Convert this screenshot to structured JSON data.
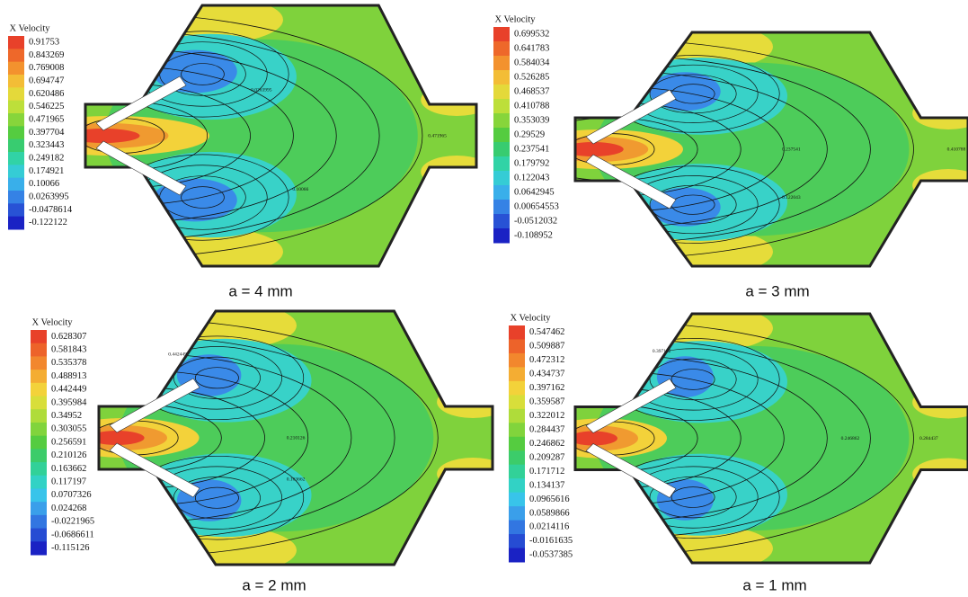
{
  "panels": [
    {
      "legend_title": "X Velocity",
      "levels": [
        "0.91753",
        "0.843269",
        "0.769008",
        "0.694747",
        "0.620486",
        "0.546225",
        "0.471965",
        "0.397704",
        "0.323443",
        "0.249182",
        "0.174921",
        "0.10066",
        "0.0263995",
        "-0.0478614",
        "-0.122122"
      ],
      "caption": "a = 4 mm",
      "contour_labels": [
        "0.0263995",
        "0.471965",
        "0.10066"
      ]
    },
    {
      "legend_title": "X Velocity",
      "levels": [
        "0.699532",
        "0.641783",
        "0.584034",
        "0.526285",
        "0.468537",
        "0.410788",
        "0.353039",
        "0.29529",
        "0.237541",
        "0.179792",
        "0.122043",
        "0.0642945",
        "0.00654553",
        "-0.0512032",
        "-0.108952"
      ],
      "caption": "a = 3 mm",
      "contour_labels": [
        "0.237541",
        "0.410788",
        "0.122043"
      ]
    },
    {
      "legend_title": "X Velocity",
      "levels": [
        "0.628307",
        "0.581843",
        "0.535378",
        "0.488913",
        "0.442449",
        "0.395984",
        "0.34952",
        "0.303055",
        "0.256591",
        "0.210126",
        "0.163662",
        "0.117197",
        "0.0707326",
        "0.024268",
        "-0.0221965",
        "-0.0686611",
        "-0.115126"
      ],
      "caption": "a = 2 mm",
      "contour_labels": [
        "0.442449",
        "0.210126",
        "0.163662"
      ]
    },
    {
      "legend_title": "X Velocity",
      "levels": [
        "0.547462",
        "0.509887",
        "0.472312",
        "0.434737",
        "0.397162",
        "0.359587",
        "0.322012",
        "0.284437",
        "0.246862",
        "0.209287",
        "0.171712",
        "0.134137",
        "0.0965616",
        "0.0589866",
        "0.0214116",
        "-0.0161635",
        "-0.0537385"
      ],
      "caption": "a = 1 mm",
      "contour_labels": [
        "0.397162",
        "0.246862",
        "0.284437"
      ]
    }
  ]
}
